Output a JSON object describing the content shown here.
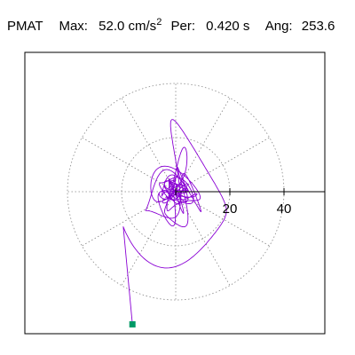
{
  "header": {
    "station": "PMAT",
    "max_label": "Max:",
    "max_value": "52.0 cm/s",
    "max_sup": "2",
    "period_label": "Per:",
    "period_value": "0.420 s",
    "angle_label": "Ang:",
    "angle_value": "253.6"
  },
  "chart_data": {
    "type": "polar-orbit",
    "axis_ticks": [
      {
        "value": 20,
        "label": "20"
      },
      {
        "value": 40,
        "label": "40"
      }
    ],
    "rings": [
      20,
      40
    ],
    "spokes_deg": [
      0,
      30,
      60,
      90,
      120,
      150,
      180,
      210,
      240,
      270,
      300,
      330
    ],
    "start_marker": {
      "x": -16,
      "y": -49
    },
    "colors": {
      "trace": "#8a00d4",
      "grid": "#888888",
      "axis": "#000000",
      "marker": "#009966",
      "frame": "#000000"
    }
  }
}
